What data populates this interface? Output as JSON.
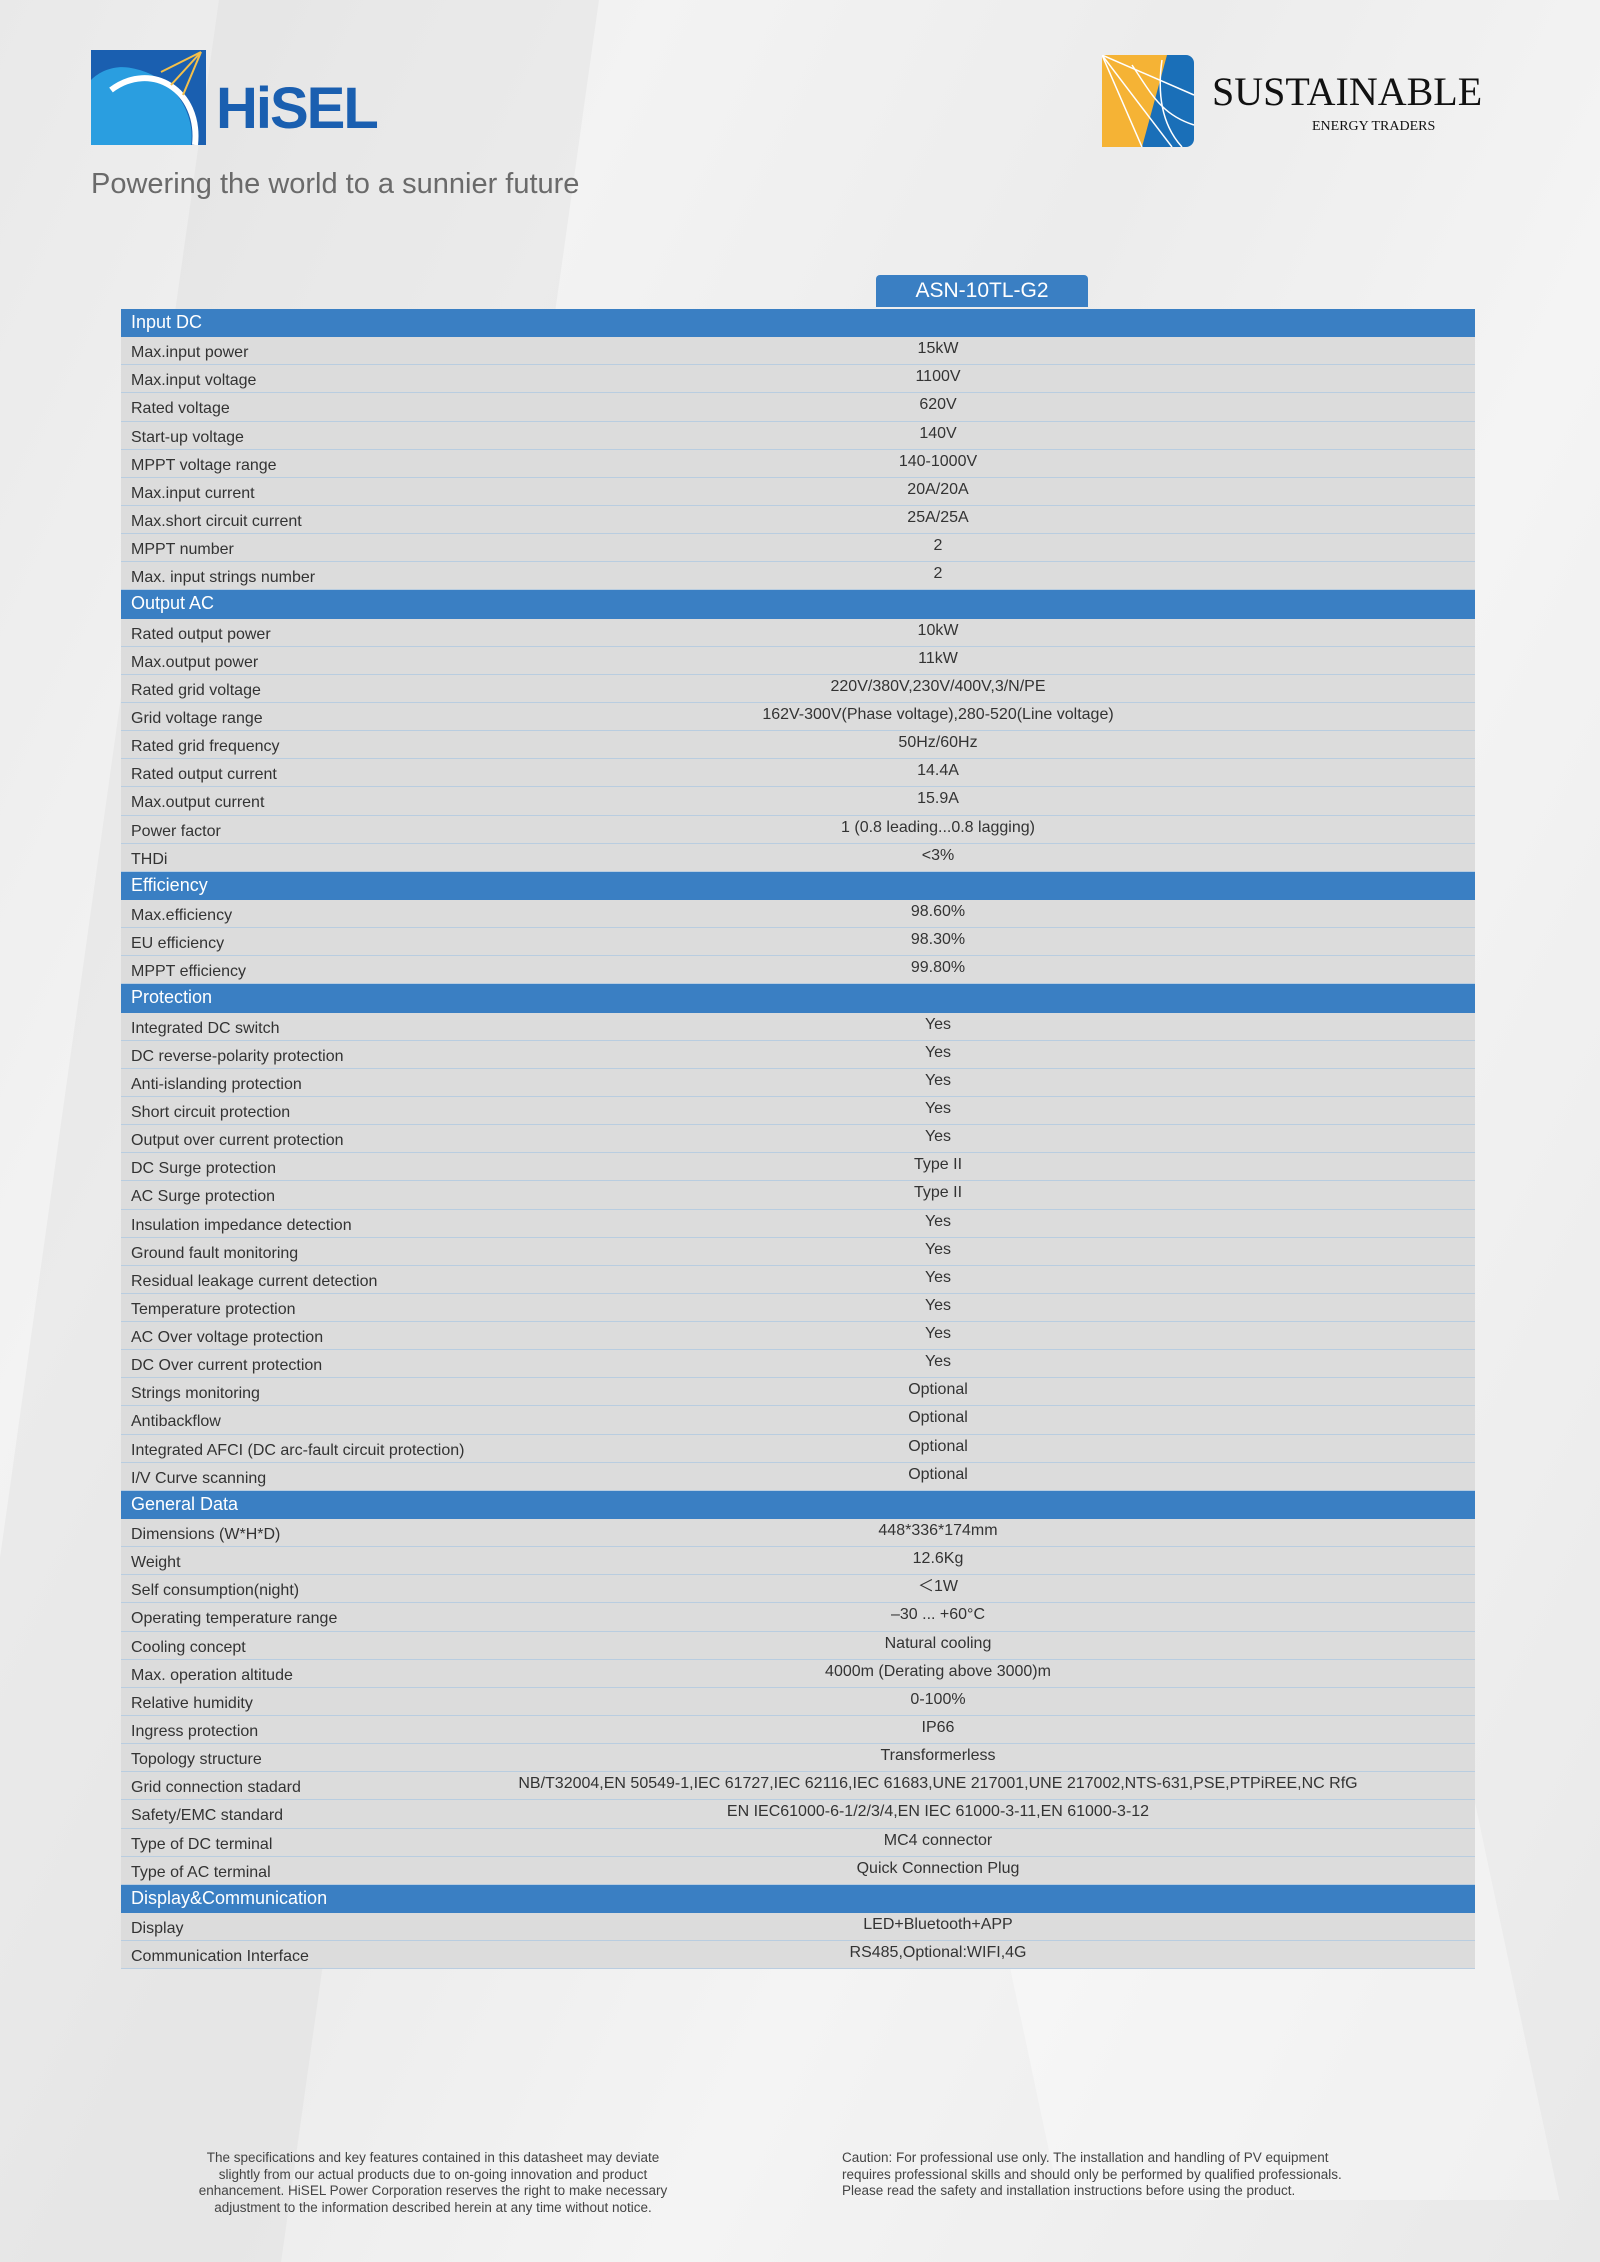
{
  "header": {
    "brand_logo": "HiSEL",
    "partner_logo": {
      "name": "SUSTAINABLE",
      "sub": "ENERGY TRADERS"
    },
    "tagline": "Powering the world to a sunnier future"
  },
  "model": "ASN-10TL-G2",
  "colors": {
    "accent": "#3a7fc3",
    "row_bg": "#dcdcdc",
    "logo_yellow": "#f5b335"
  },
  "sections": [
    {
      "title": "Input DC",
      "rows": [
        {
          "label": "Max.input power",
          "value": "15kW"
        },
        {
          "label": "Max.input voltage",
          "value": "1100V"
        },
        {
          "label": "Rated voltage",
          "value": "620V"
        },
        {
          "label": "Start-up voltage",
          "value": "140V"
        },
        {
          "label": "MPPT voltage range",
          "value": "140-1000V"
        },
        {
          "label": "Max.input current",
          "value": "20A/20A"
        },
        {
          "label": "Max.short circuit current",
          "value": "25A/25A"
        },
        {
          "label": "MPPT number",
          "value": "2"
        },
        {
          "label": "Max. input strings number",
          "value": "2"
        }
      ]
    },
    {
      "title": "Output AC",
      "rows": [
        {
          "label": "Rated output power",
          "value": "10kW"
        },
        {
          "label": "Max.output power",
          "value": "11kW"
        },
        {
          "label": "Rated grid voltage",
          "value": "220V/380V,230V/400V,3/N/PE"
        },
        {
          "label": "Grid voltage range",
          "value": "162V-300V(Phase voltage),280-520(Line voltage)"
        },
        {
          "label": "Rated grid frequency",
          "value": "50Hz/60Hz"
        },
        {
          "label": "Rated output current",
          "value": "14.4A"
        },
        {
          "label": "Max.output current",
          "value": "15.9A"
        },
        {
          "label": "Power factor",
          "value": "1 (0.8 leading...0.8 lagging)"
        },
        {
          "label": "THDi",
          "value": "<3%"
        }
      ]
    },
    {
      "title": "Efficiency",
      "rows": [
        {
          "label": "Max.efficiency",
          "value": "98.60%"
        },
        {
          "label": "EU efficiency",
          "value": "98.30%"
        },
        {
          "label": "MPPT efficiency",
          "value": "99.80%"
        }
      ]
    },
    {
      "title": "Protection",
      "rows": [
        {
          "label": "Integrated DC switch",
          "value": "Yes"
        },
        {
          "label": "DC reverse-polarity protection",
          "value": "Yes"
        },
        {
          "label": "Anti-islanding protection",
          "value": "Yes"
        },
        {
          "label": "Short circuit protection",
          "value": "Yes"
        },
        {
          "label": "Output over current protection",
          "value": "Yes"
        },
        {
          "label": "DC Surge protection",
          "value": "Type II"
        },
        {
          "label": "AC Surge protection",
          "value": "Type II"
        },
        {
          "label": "Insulation impedance detection",
          "value": "Yes"
        },
        {
          "label": "Ground fault monitoring",
          "value": "Yes"
        },
        {
          "label": "Residual leakage current detection",
          "value": "Yes"
        },
        {
          "label": "Temperature protection",
          "value": "Yes"
        },
        {
          "label": "AC Over voltage protection",
          "value": "Yes"
        },
        {
          "label": "DC Over current protection",
          "value": "Yes"
        },
        {
          "label": "Strings monitoring",
          "value": "Optional"
        },
        {
          "label": "Antibackflow",
          "value": "Optional"
        },
        {
          "label": "Integrated AFCI (DC arc-fault circuit protection)",
          "value": "Optional"
        },
        {
          "label": "I/V Curve scanning",
          "value": "Optional"
        }
      ]
    },
    {
      "title": "General Data",
      "rows": [
        {
          "label": "Dimensions (W*H*D)",
          "value": "448*336*174mm"
        },
        {
          "label": "Weight",
          "value": "12.6Kg"
        },
        {
          "label": "Self consumption(night)",
          "value": "＜1W"
        },
        {
          "label": "Operating temperature range",
          "value": "–30 ... +60°C"
        },
        {
          "label": "Cooling concept",
          "value": "Natural cooling"
        },
        {
          "label": "Max. operation altitude",
          "value": "4000m (Derating above 3000)m"
        },
        {
          "label": "Relative humidity",
          "value": "0-100%"
        },
        {
          "label": "Ingress protection",
          "value": "IP66"
        },
        {
          "label": "Topology structure",
          "value": "Transformerless"
        },
        {
          "label": "Grid connection stadard",
          "value": "NB/T32004,EN 50549-1,IEC 61727,IEC 62116,IEC 61683,UNE 217001,UNE 217002,NTS-631,PSE,PTPiREE,NC RfG"
        },
        {
          "label": "Safety/EMC standard",
          "value": "EN IEC61000-6-1/2/3/4,EN IEC 61000-3-11,EN  61000-3-12"
        },
        {
          "label": "Type of DC terminal",
          "value": "MC4 connector"
        },
        {
          "label": "Type of AC terminal",
          "value": "Quick Connection Plug"
        }
      ]
    },
    {
      "title": "Display&Communication",
      "rows": [
        {
          "label": "Display",
          "value": "LED+Bluetooth+APP"
        },
        {
          "label": "Communication Interface",
          "value": "RS485,Optional:WIFI,4G"
        }
      ]
    }
  ],
  "footer": {
    "disclaimer_lines": [
      "The specifications and key features contained in this datasheet may deviate",
      "slightly from our actual products due to on-going innovation and product",
      "enhancement. HiSEL Power Corporation reserves the right to make necessary",
      "adjustment to the information described herein at any time without notice."
    ],
    "caution_lines": [
      "Caution:  For professional use only. The installation and handling of PV equipment",
      "requires professional skills and should only be performed by qualified professionals.",
      "Please read the safety and installation instructions before using the product."
    ]
  }
}
